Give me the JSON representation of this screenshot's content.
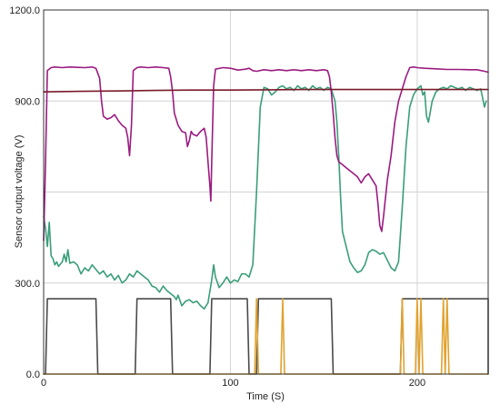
{
  "chart_data": {
    "type": "line",
    "xlabel": "Time (S)",
    "ylabel": "Sensor output voltage (V)",
    "xlim": [
      0,
      238
    ],
    "ylim": [
      0,
      1200
    ],
    "x_ticks": [
      0,
      100,
      200
    ],
    "x_tick_labels": [
      "0",
      "100",
      "200"
    ],
    "y_ticks": [
      0,
      300,
      600,
      900,
      1200
    ],
    "y_tick_labels": [
      "0.0",
      "300.0",
      "",
      "900.0",
      "1200.0"
    ],
    "grid": true,
    "series": [
      {
        "color": "#4a4a4a",
        "points": [
          [
            0,
            0
          ],
          [
            1,
            0
          ],
          [
            2,
            248
          ],
          [
            28,
            248
          ],
          [
            29,
            0
          ],
          [
            49,
            0
          ],
          [
            50,
            248
          ],
          [
            68,
            248
          ],
          [
            69,
            0
          ],
          [
            89,
            0
          ],
          [
            90,
            248
          ],
          [
            109,
            248
          ],
          [
            110,
            0
          ],
          [
            114,
            0
          ],
          [
            115,
            248
          ],
          [
            154,
            248
          ],
          [
            155,
            0
          ],
          [
            191,
            0
          ],
          [
            192,
            248
          ],
          [
            238,
            248
          ],
          [
            238,
            0
          ]
        ]
      },
      {
        "color": "#e0a22e",
        "points": [
          [
            0,
            0
          ],
          [
            113,
            0
          ],
          [
            114,
            248
          ],
          [
            115,
            0
          ],
          [
            127,
            0
          ],
          [
            128,
            248
          ],
          [
            129,
            0
          ],
          [
            191,
            0
          ],
          [
            192,
            248
          ],
          [
            193,
            0
          ],
          [
            199,
            0
          ],
          [
            200,
            248
          ],
          [
            201,
            0
          ],
          [
            202,
            248
          ],
          [
            203,
            0
          ],
          [
            213,
            0
          ],
          [
            214,
            248
          ],
          [
            215,
            0
          ],
          [
            216,
            248
          ],
          [
            217,
            0
          ],
          [
            238,
            0
          ]
        ]
      },
      {
        "color": "#3a9e78",
        "points": [
          [
            0,
            520
          ],
          [
            1,
            480
          ],
          [
            2,
            420
          ],
          [
            3,
            500
          ],
          [
            4,
            390
          ],
          [
            5,
            380
          ],
          [
            6,
            360
          ],
          [
            7,
            370
          ],
          [
            8,
            355
          ],
          [
            10,
            370
          ],
          [
            11,
            395
          ],
          [
            12,
            370
          ],
          [
            13,
            410
          ],
          [
            14,
            365
          ],
          [
            16,
            370
          ],
          [
            18,
            360
          ],
          [
            20,
            330
          ],
          [
            22,
            350
          ],
          [
            24,
            340
          ],
          [
            26,
            360
          ],
          [
            28,
            345
          ],
          [
            30,
            330
          ],
          [
            32,
            340
          ],
          [
            34,
            320
          ],
          [
            36,
            330
          ],
          [
            38,
            310
          ],
          [
            40,
            325
          ],
          [
            42,
            300
          ],
          [
            44,
            310
          ],
          [
            46,
            330
          ],
          [
            48,
            320
          ],
          [
            50,
            340
          ],
          [
            52,
            330
          ],
          [
            54,
            320
          ],
          [
            56,
            310
          ],
          [
            58,
            290
          ],
          [
            60,
            285
          ],
          [
            62,
            270
          ],
          [
            64,
            290
          ],
          [
            66,
            275
          ],
          [
            68,
            265
          ],
          [
            70,
            255
          ],
          [
            71,
            245
          ],
          [
            72,
            260
          ],
          [
            74,
            225
          ],
          [
            76,
            240
          ],
          [
            78,
            245
          ],
          [
            80,
            235
          ],
          [
            82,
            240
          ],
          [
            84,
            225
          ],
          [
            86,
            215
          ],
          [
            88,
            235
          ],
          [
            90,
            310
          ],
          [
            91,
            360
          ],
          [
            92,
            320
          ],
          [
            94,
            285
          ],
          [
            96,
            300
          ],
          [
            98,
            320
          ],
          [
            100,
            300
          ],
          [
            102,
            310
          ],
          [
            104,
            305
          ],
          [
            106,
            330
          ],
          [
            108,
            330
          ],
          [
            110,
            320
          ],
          [
            112,
            360
          ],
          [
            114,
            600
          ],
          [
            116,
            880
          ],
          [
            118,
            945
          ],
          [
            120,
            940
          ],
          [
            122,
            920
          ],
          [
            124,
            930
          ],
          [
            126,
            945
          ],
          [
            128,
            950
          ],
          [
            130,
            940
          ],
          [
            132,
            945
          ],
          [
            134,
            935
          ],
          [
            136,
            950
          ],
          [
            138,
            940
          ],
          [
            140,
            945
          ],
          [
            142,
            935
          ],
          [
            144,
            950
          ],
          [
            146,
            940
          ],
          [
            148,
            945
          ],
          [
            150,
            935
          ],
          [
            152,
            945
          ],
          [
            154,
            940
          ],
          [
            156,
            900
          ],
          [
            157,
            830
          ],
          [
            158,
            720
          ],
          [
            159,
            580
          ],
          [
            160,
            470
          ],
          [
            162,
            420
          ],
          [
            164,
            370
          ],
          [
            166,
            350
          ],
          [
            168,
            335
          ],
          [
            170,
            340
          ],
          [
            172,
            360
          ],
          [
            174,
            400
          ],
          [
            176,
            410
          ],
          [
            178,
            405
          ],
          [
            180,
            395
          ],
          [
            182,
            400
          ],
          [
            184,
            375
          ],
          [
            186,
            350
          ],
          [
            188,
            340
          ],
          [
            190,
            370
          ],
          [
            192,
            550
          ],
          [
            194,
            750
          ],
          [
            196,
            880
          ],
          [
            198,
            920
          ],
          [
            200,
            940
          ],
          [
            202,
            950
          ],
          [
            203,
            920
          ],
          [
            204,
            930
          ],
          [
            205,
            850
          ],
          [
            206,
            830
          ],
          [
            208,
            900
          ],
          [
            210,
            930
          ],
          [
            212,
            940
          ],
          [
            214,
            945
          ],
          [
            216,
            940
          ],
          [
            218,
            950
          ],
          [
            220,
            945
          ],
          [
            222,
            940
          ],
          [
            224,
            945
          ],
          [
            226,
            935
          ],
          [
            228,
            945
          ],
          [
            230,
            940
          ],
          [
            232,
            935
          ],
          [
            234,
            940
          ],
          [
            236,
            880
          ],
          [
            237,
            900
          ]
        ]
      },
      {
        "color": "#9b1b80",
        "points": [
          [
            0,
            440
          ],
          [
            1,
            700
          ],
          [
            2,
            1000
          ],
          [
            4,
            1010
          ],
          [
            6,
            1012
          ],
          [
            10,
            1010
          ],
          [
            14,
            1012
          ],
          [
            18,
            1011
          ],
          [
            22,
            1010
          ],
          [
            26,
            1012
          ],
          [
            28,
            1008
          ],
          [
            30,
            975
          ],
          [
            31,
            900
          ],
          [
            32,
            850
          ],
          [
            34,
            840
          ],
          [
            36,
            845
          ],
          [
            38,
            855
          ],
          [
            40,
            835
          ],
          [
            42,
            820
          ],
          [
            44,
            810
          ],
          [
            45,
            780
          ],
          [
            46,
            720
          ],
          [
            47,
            820
          ],
          [
            48,
            1000
          ],
          [
            50,
            1010
          ],
          [
            52,
            1012
          ],
          [
            56,
            1010
          ],
          [
            60,
            1012
          ],
          [
            64,
            1010
          ],
          [
            67,
            1008
          ],
          [
            68,
            980
          ],
          [
            69,
            930
          ],
          [
            70,
            860
          ],
          [
            72,
            820
          ],
          [
            74,
            800
          ],
          [
            76,
            795
          ],
          [
            77,
            750
          ],
          [
            78,
            770
          ],
          [
            79,
            800
          ],
          [
            80,
            790
          ],
          [
            82,
            785
          ],
          [
            84,
            800
          ],
          [
            86,
            810
          ],
          [
            87,
            780
          ],
          [
            88,
            700
          ],
          [
            89,
            620
          ],
          [
            89.5,
            570
          ],
          [
            90,
            700
          ],
          [
            91,
            950
          ],
          [
            92,
            1005
          ],
          [
            96,
            1010
          ],
          [
            100,
            1008
          ],
          [
            104,
            1002
          ],
          [
            108,
            1005
          ],
          [
            110,
            1008
          ],
          [
            112,
            1000
          ],
          [
            114,
            998
          ],
          [
            118,
            1003
          ],
          [
            122,
            1000
          ],
          [
            126,
            1003
          ],
          [
            130,
            1000
          ],
          [
            134,
            1003
          ],
          [
            138,
            1000
          ],
          [
            142,
            1003
          ],
          [
            146,
            1000
          ],
          [
            150,
            1003
          ],
          [
            152,
            1000
          ],
          [
            153,
            980
          ],
          [
            154,
            930
          ],
          [
            155,
            860
          ],
          [
            156,
            780
          ],
          [
            157,
            720
          ],
          [
            158,
            700
          ],
          [
            160,
            690
          ],
          [
            162,
            680
          ],
          [
            164,
            670
          ],
          [
            166,
            660
          ],
          [
            168,
            650
          ],
          [
            170,
            630
          ],
          [
            172,
            650
          ],
          [
            174,
            660
          ],
          [
            176,
            640
          ],
          [
            178,
            620
          ],
          [
            179,
            560
          ],
          [
            180,
            490
          ],
          [
            181,
            470
          ],
          [
            182,
            520
          ],
          [
            184,
            640
          ],
          [
            186,
            720
          ],
          [
            188,
            830
          ],
          [
            190,
            900
          ],
          [
            192,
            940
          ],
          [
            194,
            980
          ],
          [
            196,
            1010
          ],
          [
            198,
            1012
          ],
          [
            200,
            1010
          ],
          [
            204,
            1008
          ],
          [
            210,
            1006
          ],
          [
            216,
            1004
          ],
          [
            222,
            1004
          ],
          [
            228,
            1003
          ],
          [
            232,
            1003
          ],
          [
            236,
            998
          ],
          [
            238,
            995
          ]
        ]
      },
      {
        "color": "#7a1a2a",
        "points": [
          [
            0,
            930
          ],
          [
            20,
            932
          ],
          [
            40,
            933
          ],
          [
            60,
            935
          ],
          [
            80,
            936
          ],
          [
            100,
            936
          ],
          [
            120,
            937
          ],
          [
            140,
            938
          ],
          [
            160,
            938
          ],
          [
            180,
            938
          ],
          [
            200,
            938
          ],
          [
            220,
            938
          ],
          [
            238,
            938
          ]
        ]
      }
    ]
  }
}
